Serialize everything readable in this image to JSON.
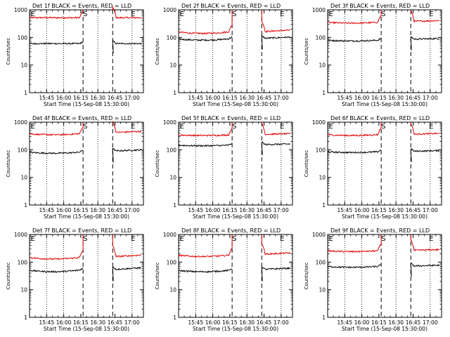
{
  "chart_data": [
    {
      "type": "line",
      "title": "Det 1f BLACK = Events, RED = LLD",
      "xlabel": "Start Time (15-Sep-08 15:30:00)",
      "ylabel": "Counts/sec",
      "yscale": "log",
      "ylim": [
        1,
        1000
      ],
      "ytick_labels": [
        "1",
        "10",
        "100",
        "1000"
      ],
      "xtick_labels": [
        "15:45",
        "16:00",
        "16:15",
        "16:30",
        "16:45",
        "17:00"
      ],
      "markers": [
        "E",
        "S",
        "E"
      ],
      "red_level": 520,
      "black_level": 60,
      "red_slope": 0.0,
      "black_slope": 0.0,
      "after_factor": 1.0,
      "series": [
        {
          "name": "BLACK = Events",
          "color": "#000000"
        },
        {
          "name": "RED = LLD",
          "color": "#e00000"
        }
      ]
    },
    {
      "type": "line",
      "title": "Det 2f BLACK = Events, RED = LLD",
      "xlabel": "Start Time (15-Sep-08 15:30:00)",
      "ylabel": "Counts/sec",
      "yscale": "log",
      "ylim": [
        1,
        1000
      ],
      "ytick_labels": [
        "1",
        "10",
        "100",
        "1000"
      ],
      "xtick_labels": [
        "15:45",
        "16:00",
        "16:15",
        "16:30",
        "16:45",
        "17:00"
      ],
      "markers": [
        "E",
        "S",
        "E"
      ],
      "red_level": 140,
      "black_level": 80,
      "red_slope": 0.15,
      "black_slope": 0.12,
      "after_factor": 1.15,
      "series": [
        {
          "name": "BLACK = Events",
          "color": "#000000"
        },
        {
          "name": "RED = LLD",
          "color": "#e00000"
        }
      ]
    },
    {
      "type": "line",
      "title": "Det 3f BLACK = Events, RED = LLD",
      "xlabel": "Start Time (15-Sep-08 15:30:00)",
      "ylabel": "Counts/sec",
      "yscale": "log",
      "ylim": [
        1,
        1000
      ],
      "ytick_labels": [
        "1",
        "10",
        "100",
        "1000"
      ],
      "xtick_labels": [
        "15:45",
        "16:00",
        "16:15",
        "16:30",
        "16:45",
        "17:00"
      ],
      "markers": [
        "E",
        "S",
        "E"
      ],
      "red_level": 330,
      "black_level": 75,
      "red_slope": 0.08,
      "black_slope": 0.06,
      "after_factor": 1.15,
      "series": [
        {
          "name": "BLACK = Events",
          "color": "#000000"
        },
        {
          "name": "RED = LLD",
          "color": "#e00000"
        }
      ]
    },
    {
      "type": "line",
      "title": "Det 4f BLACK = Events, RED = LLD",
      "xlabel": "Start Time (15-Sep-08 15:30:00)",
      "ylabel": "Counts/sec",
      "yscale": "log",
      "ylim": [
        1,
        1000
      ],
      "ytick_labels": [
        "1",
        "10",
        "100",
        "1000"
      ],
      "xtick_labels": [
        "15:45",
        "16:00",
        "16:15",
        "16:30",
        "16:45",
        "17:00"
      ],
      "markers": [
        "E",
        "S",
        "E"
      ],
      "red_level": 350,
      "black_level": 75,
      "red_slope": 0.1,
      "black_slope": 0.1,
      "after_factor": 1.2,
      "series": [
        {
          "name": "BLACK = Events",
          "color": "#000000"
        },
        {
          "name": "RED = LLD",
          "color": "#e00000"
        }
      ]
    },
    {
      "type": "line",
      "title": "Det 5f BLACK = Events, RED = LLD",
      "xlabel": "Start Time (15-Sep-08 15:30:00)",
      "ylabel": "Counts/sec",
      "yscale": "log",
      "ylim": [
        1,
        1000
      ],
      "ytick_labels": [
        "1",
        "10",
        "100",
        "1000"
      ],
      "xtick_labels": [
        "15:45",
        "16:00",
        "16:15",
        "16:30",
        "16:45",
        "17:00"
      ],
      "markers": [
        "E",
        "S",
        "E"
      ],
      "red_level": 330,
      "black_level": 140,
      "red_slope": 0.05,
      "black_slope": 0.05,
      "after_factor": 1.1,
      "series": [
        {
          "name": "BLACK = Events",
          "color": "#000000"
        },
        {
          "name": "RED = LLD",
          "color": "#e00000"
        }
      ]
    },
    {
      "type": "line",
      "title": "Det 6f BLACK = Events, RED = LLD",
      "xlabel": "Start Time (15-Sep-08 15:30:00)",
      "ylabel": "Counts/sec",
      "yscale": "log",
      "ylim": [
        1,
        1000
      ],
      "ytick_labels": [
        "1",
        "10",
        "100",
        "1000"
      ],
      "xtick_labels": [
        "15:45",
        "16:00",
        "16:15",
        "16:30",
        "16:45",
        "17:00"
      ],
      "markers": [
        "E",
        "S",
        "E"
      ],
      "red_level": 330,
      "black_level": 80,
      "red_slope": 0.08,
      "black_slope": 0.06,
      "after_factor": 1.1,
      "series": [
        {
          "name": "BLACK = Events",
          "color": "#000000"
        },
        {
          "name": "RED = LLD",
          "color": "#e00000"
        }
      ]
    },
    {
      "type": "line",
      "title": "Det 7f BLACK = Events, RED = LLD",
      "xlabel": "Start Time (15-Sep-08 15:30:00)",
      "ylabel": "Counts/sec",
      "yscale": "log",
      "ylim": [
        1,
        1000
      ],
      "ytick_labels": [
        "1",
        "10",
        "100",
        "1000"
      ],
      "xtick_labels": [
        "15:45",
        "16:00",
        "16:15",
        "16:30",
        "16:45",
        "17:00"
      ],
      "markers": [
        "E",
        "S",
        "E"
      ],
      "red_level": 130,
      "black_level": 45,
      "red_slope": 0.15,
      "black_slope": 0.15,
      "after_factor": 1.2,
      "series": [
        {
          "name": "BLACK = Events",
          "color": "#000000"
        },
        {
          "name": "RED = LLD",
          "color": "#e00000"
        }
      ]
    },
    {
      "type": "line",
      "title": "Det 8f BLACK = Events, RED = LLD",
      "xlabel": "Start Time (15-Sep-08 15:30:00)",
      "ylabel": "Counts/sec",
      "yscale": "log",
      "ylim": [
        1,
        1000
      ],
      "ytick_labels": [
        "1",
        "10",
        "100",
        "1000"
      ],
      "xtick_labels": [
        "15:45",
        "16:00",
        "16:15",
        "16:30",
        "16:45",
        "17:00"
      ],
      "markers": [
        "E",
        "S",
        "E"
      ],
      "red_level": 160,
      "black_level": 45,
      "red_slope": 0.12,
      "black_slope": 0.12,
      "after_factor": 1.2,
      "series": [
        {
          "name": "BLACK = Events",
          "color": "#000000"
        },
        {
          "name": "RED = LLD",
          "color": "#e00000"
        }
      ]
    },
    {
      "type": "line",
      "title": "Det 9f BLACK = Events, RED = LLD",
      "xlabel": "Start Time (15-Sep-08 15:30:00)",
      "ylabel": "Counts/sec",
      "yscale": "log",
      "ylim": [
        1,
        1000
      ],
      "ytick_labels": [
        "1",
        "10",
        "100",
        "1000"
      ],
      "xtick_labels": [
        "15:45",
        "16:00",
        "16:15",
        "16:30",
        "16:45",
        "17:00"
      ],
      "markers": [
        "E",
        "S",
        "E"
      ],
      "red_level": 240,
      "black_level": 65,
      "red_slope": 0.08,
      "black_slope": 0.08,
      "after_factor": 1.1,
      "series": [
        {
          "name": "BLACK = Events",
          "color": "#000000"
        },
        {
          "name": "RED = LLD",
          "color": "#e00000"
        }
      ]
    }
  ]
}
